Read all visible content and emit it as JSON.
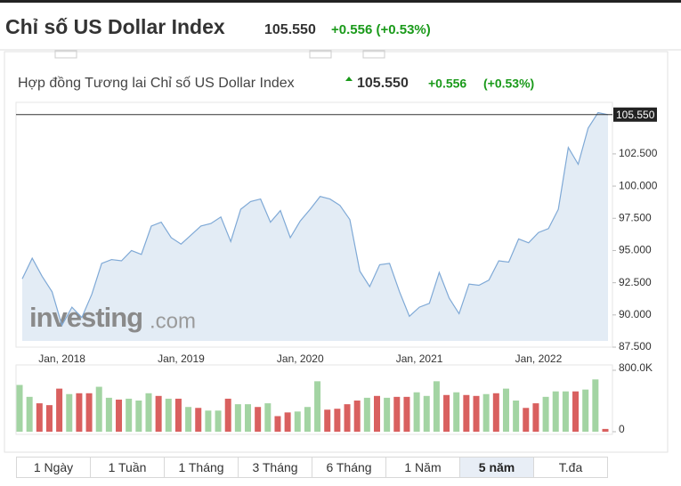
{
  "header": {
    "title": "Chỉ số US Dollar Index",
    "price": "105.550",
    "change": "+0.556 (+0.53%)"
  },
  "subheader": {
    "title": "Hợp đồng Tương lai Chỉ số US Dollar Index",
    "price": "105.550",
    "change": "+0.556",
    "percent": "(+0.53%)"
  },
  "watermark": {
    "brand": "investing",
    "suffix": ".com"
  },
  "tabs": {
    "items": [
      "1 Ngày",
      "1 Tuần",
      "1 Tháng",
      "3 Tháng",
      "6 Tháng",
      "1 Năm",
      "5 năm",
      "T.đa"
    ],
    "active": 6
  },
  "chart_data": [
    {
      "type": "area",
      "color": "#7fa9d6",
      "fill": "#e3ecf5",
      "categories": [
        null,
        null,
        null,
        null,
        "Jan, 2018",
        null,
        null,
        null,
        null,
        null,
        null,
        null,
        null,
        null,
        null,
        null,
        "Jan, 2019",
        null,
        null,
        null,
        null,
        null,
        null,
        null,
        null,
        null,
        null,
        null,
        "Jan, 2020",
        null,
        null,
        null,
        null,
        null,
        null,
        null,
        null,
        null,
        null,
        null,
        "Jan, 2021",
        null,
        null,
        null,
        null,
        null,
        null,
        null,
        null,
        null,
        null,
        null,
        "Jan, 2022",
        null,
        null,
        null,
        null,
        null,
        null,
        null
      ],
      "values": [
        92.8,
        94.4,
        93.0,
        91.8,
        89.2,
        90.6,
        89.8,
        91.6,
        94.0,
        94.3,
        94.2,
        95.0,
        94.7,
        96.9,
        97.2,
        96.0,
        95.5,
        96.2,
        96.9,
        97.1,
        97.6,
        95.7,
        98.2,
        98.8,
        99.0,
        97.2,
        98.1,
        96.0,
        97.3,
        98.2,
        99.2,
        99.0,
        98.5,
        97.4,
        93.4,
        92.2,
        93.9,
        94.0,
        91.8,
        89.9,
        90.6,
        90.9,
        93.3,
        91.3,
        90.1,
        92.4,
        92.3,
        92.7,
        94.2,
        94.1,
        95.9,
        95.6,
        96.4,
        96.7,
        98.2,
        103.0,
        101.7,
        104.5,
        105.7,
        105.55
      ],
      "ylim": [
        87.5,
        106.5
      ],
      "yticks": [
        {
          "value": 87.5,
          "label": "87.500"
        },
        {
          "value": 90,
          "label": "90.000"
        },
        {
          "value": 92.5,
          "label": "92.500"
        },
        {
          "value": 95,
          "label": "95.000"
        },
        {
          "value": 97.5,
          "label": "97.500"
        },
        {
          "value": 100,
          "label": "100.000"
        },
        {
          "value": 102.5,
          "label": "102.500"
        }
      ],
      "last": {
        "value": 105.55,
        "label": "105.550"
      }
    },
    {
      "type": "bar",
      "values": [
        609000,
        454000,
        370000,
        346000,
        561000,
        490000,
        501000,
        501000,
        585000,
        442000,
        418000,
        430000,
        406000,
        501000,
        466000,
        430000,
        430000,
        322000,
        310000,
        275000,
        275000,
        430000,
        358000,
        358000,
        322000,
        370000,
        203000,
        251000,
        263000,
        322000,
        657000,
        287000,
        299000,
        358000,
        406000,
        442000,
        466000,
        442000,
        454000,
        454000,
        513000,
        466000,
        657000,
        478000,
        513000,
        478000,
        466000,
        490000,
        501000,
        561000,
        406000,
        310000,
        370000,
        454000,
        525000,
        525000,
        525000,
        549000,
        681000,
        36000
      ],
      "colors": [
        "#a3d4a3",
        "#a3d4a3",
        "#d9605f",
        "#d9605f",
        "#d9605f",
        "#a3d4a3",
        "#d9605f",
        "#d9605f",
        "#a3d4a3",
        "#a3d4a3",
        "#d9605f",
        "#a3d4a3",
        "#a3d4a3",
        "#a3d4a3",
        "#d9605f",
        "#a3d4a3",
        "#d9605f",
        "#a3d4a3",
        "#d9605f",
        "#a3d4a3",
        "#a3d4a3",
        "#d9605f",
        "#a3d4a3",
        "#a3d4a3",
        "#d9605f",
        "#a3d4a3",
        "#d9605f",
        "#d9605f",
        "#a3d4a3",
        "#a3d4a3",
        "#a3d4a3",
        "#d9605f",
        "#d9605f",
        "#d9605f",
        "#d9605f",
        "#a3d4a3",
        "#d9605f",
        "#a3d4a3",
        "#d9605f",
        "#d9605f",
        "#a3d4a3",
        "#a3d4a3",
        "#a3d4a3",
        "#d9605f",
        "#a3d4a3",
        "#d9605f",
        "#d9605f",
        "#a3d4a3",
        "#d9605f",
        "#a3d4a3",
        "#a3d4a3",
        "#d9605f",
        "#d9605f",
        "#a3d4a3",
        "#a3d4a3",
        "#a3d4a3",
        "#d9605f",
        "#a3d4a3",
        "#a3d4a3",
        "#d9605f"
      ],
      "ylim": [
        0,
        800000
      ],
      "yticks": [
        0,
        {
          "value": 800000,
          "label": "800.0K"
        }
      ]
    }
  ]
}
